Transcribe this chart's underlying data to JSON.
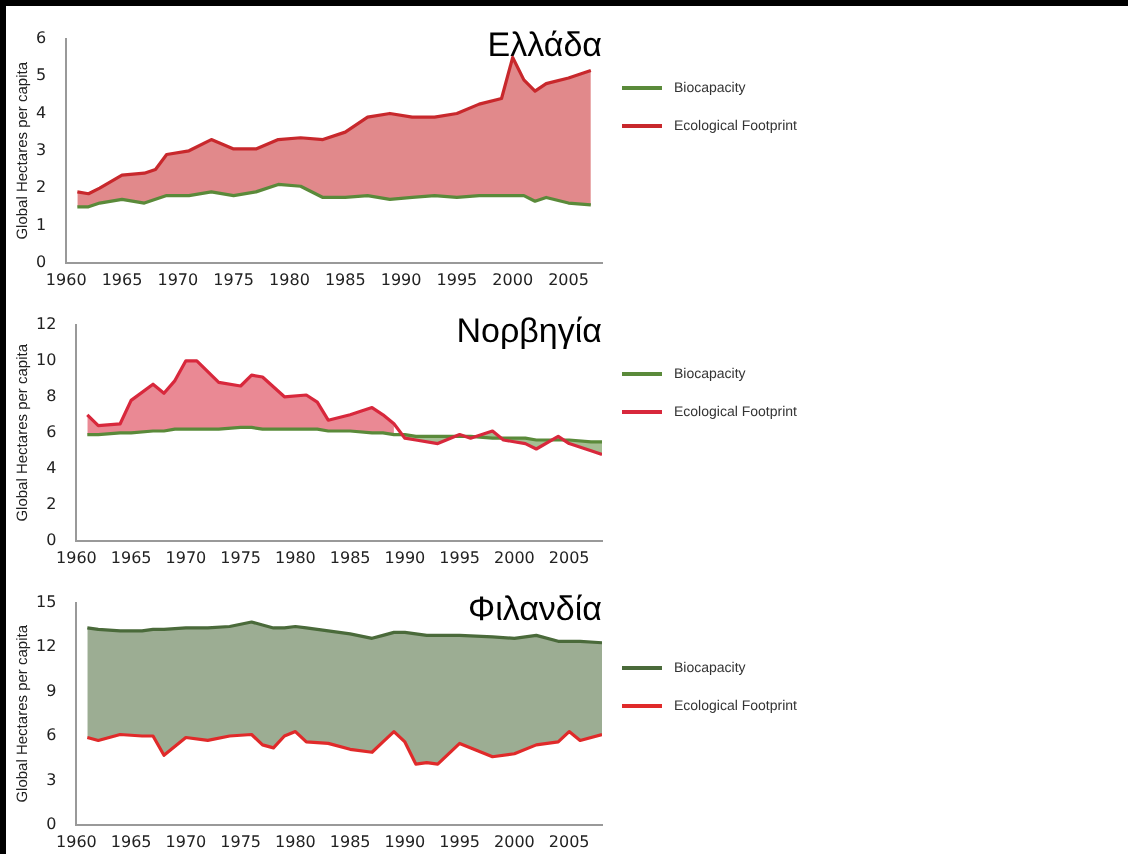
{
  "chart_data": [
    {
      "type": "line",
      "title": "Ελλάδα",
      "ylabel": "Global Hectares per capita",
      "xlim": [
        1960,
        2008
      ],
      "xticks": [
        1960,
        1965,
        1970,
        1975,
        1980,
        1985,
        1990,
        1995,
        2000,
        2005
      ],
      "ylim": [
        0,
        6
      ],
      "yticks": [
        0,
        1,
        2,
        3,
        4,
        5,
        6
      ],
      "grid": false,
      "legend": "right",
      "marker": "none",
      "x": [
        1961,
        1962,
        1963,
        1965,
        1967,
        1968,
        1969,
        1971,
        1973,
        1975,
        1977,
        1979,
        1981,
        1983,
        1985,
        1987,
        1989,
        1991,
        1993,
        1995,
        1997,
        1999,
        2000,
        2001,
        2002,
        2003,
        2005,
        2007
      ],
      "series": [
        {
          "name": "Biocapacity",
          "color": "#5a8a3a",
          "values": [
            1.5,
            1.5,
            1.6,
            1.7,
            1.6,
            1.7,
            1.8,
            1.8,
            1.9,
            1.8,
            1.9,
            2.1,
            2.05,
            1.75,
            1.75,
            1.8,
            1.7,
            1.75,
            1.8,
            1.75,
            1.8,
            1.8,
            1.8,
            1.8,
            1.65,
            1.75,
            1.6,
            1.55
          ]
        },
        {
          "name": "Ecological Footprint",
          "color": "#c8282c",
          "values": [
            1.9,
            1.85,
            2.0,
            2.35,
            2.4,
            2.5,
            2.9,
            3.0,
            3.3,
            3.05,
            3.05,
            3.3,
            3.35,
            3.3,
            3.5,
            3.9,
            4.0,
            3.9,
            3.9,
            4.0,
            4.25,
            4.4,
            5.5,
            4.9,
            4.6,
            4.8,
            4.95,
            5.15
          ],
          "lower": [
            1.5,
            1.5,
            1.6,
            1.7,
            1.6,
            1.7,
            1.8,
            1.8,
            1.9,
            1.8,
            1.9,
            2.1,
            2.05,
            1.75,
            1.75,
            1.8,
            1.7,
            1.75,
            1.8,
            1.75,
            1.8,
            1.8,
            1.8,
            1.8,
            1.65,
            1.75,
            1.6,
            1.55
          ],
          "upper": [
            1.9,
            1.85,
            2.0,
            2.35,
            2.4,
            2.5,
            2.9,
            3.0,
            3.3,
            3.05,
            3.05,
            3.3,
            3.35,
            3.3,
            3.5,
            3.9,
            4.0,
            3.9,
            3.9,
            4.0,
            4.25,
            4.4,
            5.5,
            4.9,
            4.6,
            4.8,
            4.95,
            5.15
          ]
        }
      ]
    },
    {
      "type": "line",
      "title": "Νορβηγία",
      "ylabel": "Global Hectares per capita",
      "xlim": [
        1960,
        2008
      ],
      "xticks": [
        1960,
        1965,
        1970,
        1975,
        1980,
        1985,
        1990,
        1995,
        2000,
        2005
      ],
      "ylim": [
        0,
        12
      ],
      "yticks": [
        0,
        2,
        4,
        6,
        8,
        10,
        12
      ],
      "grid": false,
      "legend": "right",
      "marker": "none",
      "x": [
        1961,
        1962,
        1964,
        1965,
        1967,
        1968,
        1969,
        1970,
        1971,
        1973,
        1975,
        1976,
        1977,
        1979,
        1981,
        1982,
        1983,
        1985,
        1987,
        1988,
        1989,
        1990,
        1991,
        1993,
        1995,
        1996,
        1998,
        1999,
        2001,
        2002,
        2004,
        2005,
        2007,
        2008
      ],
      "series": [
        {
          "name": "Biocapacity",
          "color": "#5a8a3a",
          "values": [
            5.9,
            5.9,
            6.0,
            6.0,
            6.1,
            6.1,
            6.2,
            6.2,
            6.2,
            6.2,
            6.3,
            6.3,
            6.2,
            6.2,
            6.2,
            6.2,
            6.1,
            6.1,
            6.0,
            6.0,
            5.9,
            5.9,
            5.8,
            5.8,
            5.8,
            5.8,
            5.7,
            5.7,
            5.7,
            5.6,
            5.6,
            5.6,
            5.5,
            5.5
          ],
          "lower": [
            null,
            null,
            null,
            null,
            null,
            null,
            null,
            null,
            null,
            null,
            null,
            null,
            null,
            null,
            null,
            null,
            null,
            null,
            null,
            null,
            null,
            5.7,
            5.6,
            5.4,
            5.9,
            5.7,
            6.1,
            5.6,
            5.4,
            5.1,
            5.8,
            5.4,
            5.0,
            4.8
          ],
          "upper": [
            null,
            null,
            null,
            null,
            null,
            null,
            null,
            null,
            null,
            null,
            null,
            null,
            null,
            null,
            null,
            null,
            null,
            null,
            null,
            null,
            null,
            5.9,
            5.8,
            5.8,
            5.8,
            5.8,
            5.7,
            5.7,
            5.7,
            5.6,
            5.6,
            5.6,
            5.5,
            5.5
          ]
        },
        {
          "name": "Ecological Footprint",
          "color": "#d8283c",
          "values": [
            7.0,
            6.4,
            6.5,
            7.8,
            8.7,
            8.2,
            8.9,
            10.0,
            10.0,
            8.8,
            8.6,
            9.2,
            9.1,
            8.0,
            8.1,
            7.7,
            6.7,
            7.0,
            7.4,
            7.0,
            6.5,
            5.7,
            5.6,
            5.4,
            5.9,
            5.7,
            6.1,
            5.6,
            5.4,
            5.1,
            5.8,
            5.4,
            5.0,
            4.8
          ],
          "lower": [
            5.9,
            5.9,
            6.0,
            6.0,
            6.1,
            6.1,
            6.2,
            6.2,
            6.2,
            6.2,
            6.3,
            6.3,
            6.2,
            6.2,
            6.2,
            6.2,
            6.1,
            6.1,
            6.0,
            6.0,
            5.9,
            null,
            null,
            null,
            null,
            null,
            null,
            null,
            null,
            null,
            null,
            null,
            null,
            null
          ],
          "upper": [
            7.0,
            6.4,
            6.5,
            7.8,
            8.7,
            8.2,
            8.9,
            10.0,
            10.0,
            8.8,
            8.6,
            9.2,
            9.1,
            8.0,
            8.1,
            7.7,
            6.7,
            7.0,
            7.4,
            7.0,
            6.5,
            null,
            null,
            null,
            null,
            null,
            null,
            null,
            null,
            null,
            null,
            null,
            null,
            null
          ]
        }
      ]
    },
    {
      "type": "line",
      "title": "Φιλανδία",
      "ylabel": "Global Hectares per capita",
      "xlim": [
        1960,
        2008
      ],
      "xticks": [
        1960,
        1965,
        1970,
        1975,
        1980,
        1985,
        1990,
        1995,
        2000,
        2005
      ],
      "ylim": [
        0,
        15
      ],
      "yticks": [
        0,
        3,
        6,
        9,
        12,
        15
      ],
      "grid": false,
      "legend": "right",
      "marker": "none",
      "x": [
        1961,
        1962,
        1964,
        1966,
        1967,
        1968,
        1970,
        1972,
        1974,
        1976,
        1977,
        1978,
        1979,
        1980,
        1981,
        1983,
        1985,
        1987,
        1988,
        1989,
        1990,
        1991,
        1992,
        1993,
        1995,
        1998,
        2000,
        2002,
        2004,
        2005,
        2006,
        2008
      ],
      "series": [
        {
          "name": "Biocapacity",
          "color": "#4a6a3a",
          "values": [
            13.3,
            13.2,
            13.1,
            13.1,
            13.2,
            13.2,
            13.3,
            13.3,
            13.4,
            13.7,
            13.5,
            13.3,
            13.3,
            13.4,
            13.3,
            13.1,
            12.9,
            12.6,
            12.8,
            13.0,
            13.0,
            12.9,
            12.8,
            12.8,
            12.8,
            12.7,
            12.6,
            12.8,
            12.4,
            12.4,
            12.4,
            12.3
          ],
          "lower": [
            5.9,
            5.7,
            6.1,
            6.0,
            6.0,
            4.7,
            5.9,
            5.7,
            6.0,
            6.1,
            5.4,
            5.2,
            6.0,
            6.3,
            5.6,
            5.5,
            5.1,
            4.9,
            5.6,
            6.3,
            5.6,
            4.1,
            4.2,
            4.1,
            5.5,
            4.6,
            4.8,
            5.4,
            5.6,
            6.3,
            5.7,
            6.1
          ],
          "upper": [
            13.3,
            13.2,
            13.1,
            13.1,
            13.2,
            13.2,
            13.3,
            13.3,
            13.4,
            13.7,
            13.5,
            13.3,
            13.3,
            13.4,
            13.3,
            13.1,
            12.9,
            12.6,
            12.8,
            13.0,
            13.0,
            12.9,
            12.8,
            12.8,
            12.8,
            12.7,
            12.6,
            12.8,
            12.4,
            12.4,
            12.4,
            12.3
          ]
        },
        {
          "name": "Ecological Footprint",
          "color": "#e02a2a",
          "values": [
            5.9,
            5.7,
            6.1,
            6.0,
            6.0,
            4.7,
            5.9,
            5.7,
            6.0,
            6.1,
            5.4,
            5.2,
            6.0,
            6.3,
            5.6,
            5.5,
            5.1,
            4.9,
            5.6,
            6.3,
            5.6,
            4.1,
            4.2,
            4.1,
            5.5,
            4.6,
            4.8,
            5.4,
            5.6,
            6.3,
            5.7,
            6.1
          ]
        }
      ]
    }
  ]
}
